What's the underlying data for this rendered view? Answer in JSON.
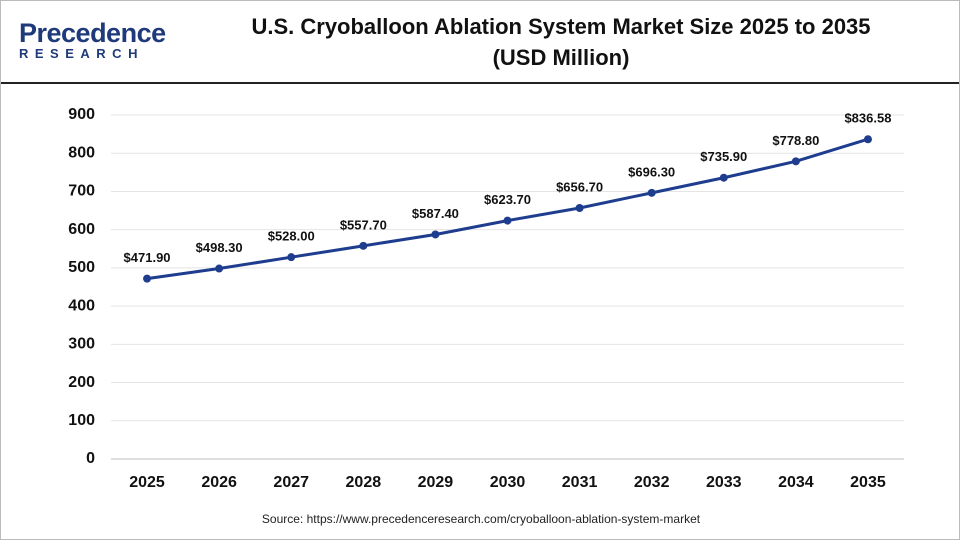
{
  "logo": {
    "name": "Precedence",
    "tagline": "RESEARCH"
  },
  "chart_data": {
    "type": "line",
    "title": "U.S. Cryoballoon Ablation System Market Size 2025 to 2035 (USD Million)",
    "categories": [
      "2025",
      "2026",
      "2027",
      "2028",
      "2029",
      "2030",
      "2031",
      "2032",
      "2033",
      "2034",
      "2035"
    ],
    "values": [
      471.9,
      498.3,
      528.0,
      557.7,
      587.4,
      623.7,
      656.7,
      696.3,
      735.9,
      778.8,
      836.58
    ],
    "value_labels": [
      "$471.90",
      "$498.30",
      "$528.00",
      "$557.70",
      "$587.40",
      "$623.70",
      "$656.70",
      "$696.30",
      "$735.90",
      "$778.80",
      "$836.58"
    ],
    "color": "#1f3d8f",
    "ylim": [
      0,
      900
    ],
    "yticks": [
      0,
      100,
      200,
      300,
      400,
      500,
      600,
      700,
      800,
      900
    ],
    "grid": true
  },
  "source": "Source: https://www.precedenceresearch.com/cryoballoon-ablation-system-market"
}
